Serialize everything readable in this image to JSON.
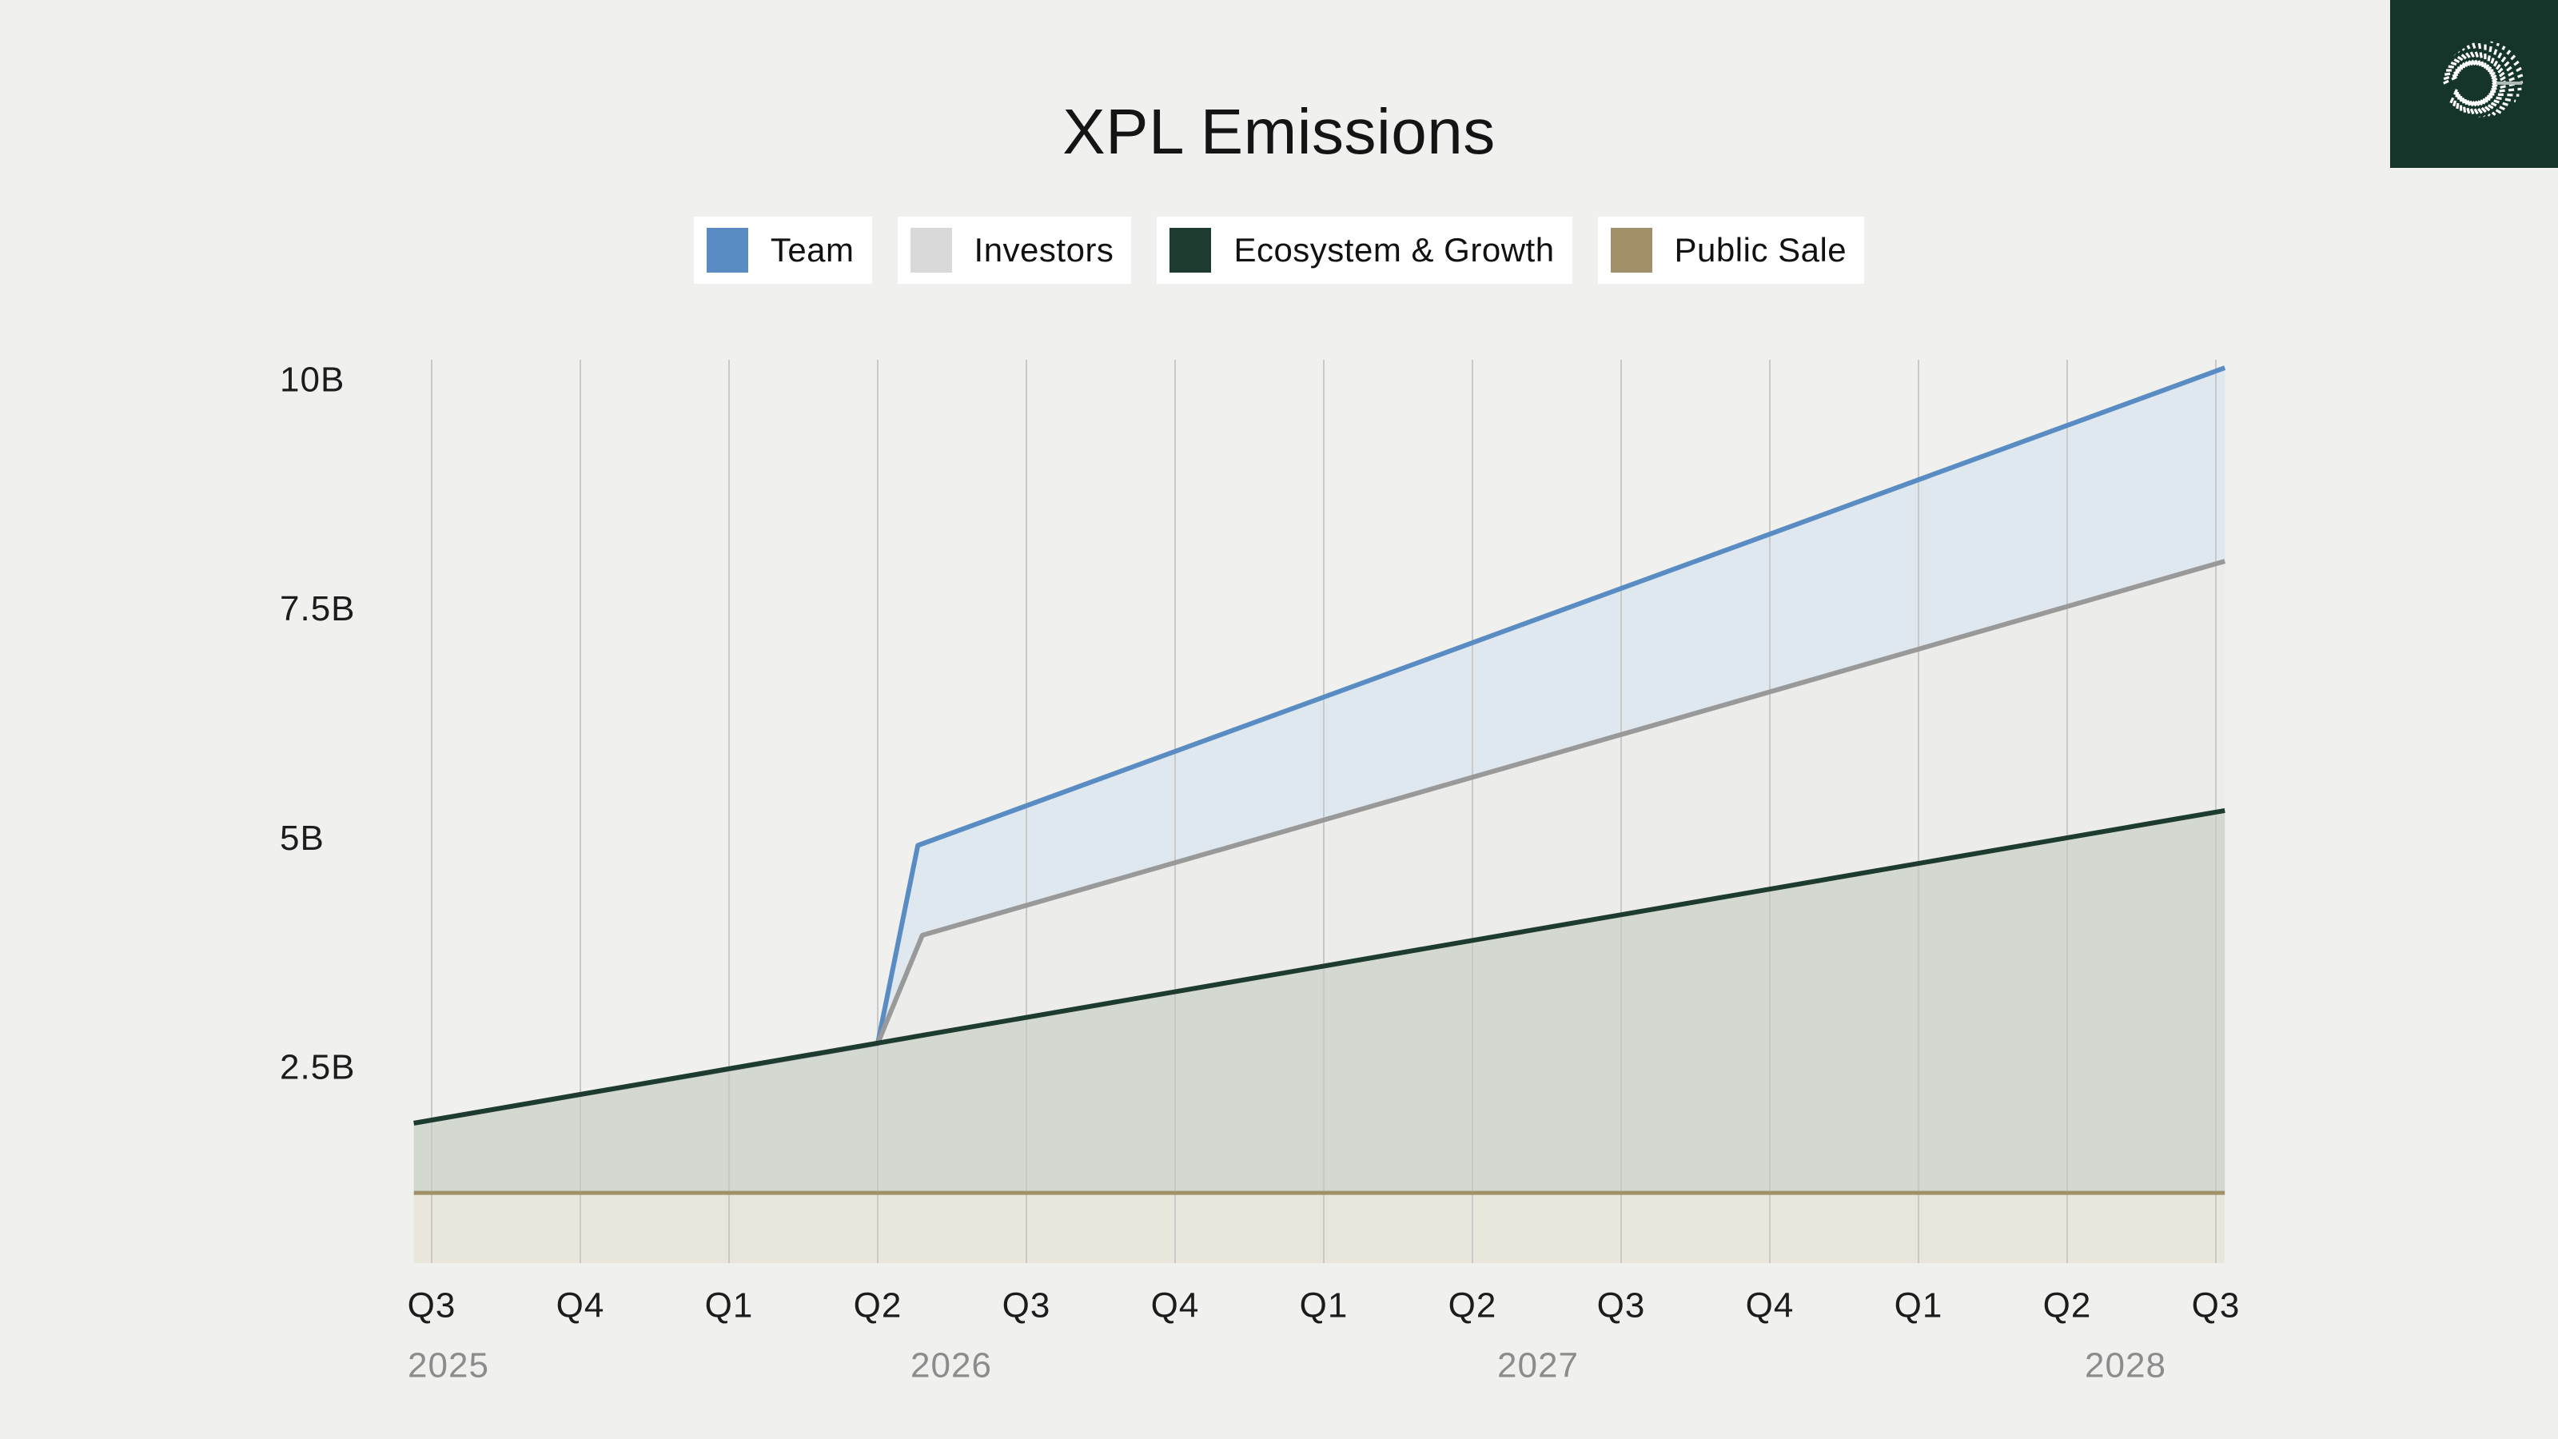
{
  "page": {
    "background": "#f0f0ee"
  },
  "header": {
    "title": "XPL Emissions"
  },
  "logo": {
    "name": "plasma-sunburst",
    "bg_color": "#16352a",
    "ray_color": "#ffffff",
    "accent_ray_color": "#aebbb4"
  },
  "legend": {
    "items": [
      {
        "label": "Team",
        "color": "#5a8cc4"
      },
      {
        "label": "Investors",
        "color": "#d9d9d9"
      },
      {
        "label": "Ecosystem & Growth",
        "color": "#1d3b2e"
      },
      {
        "label": "Public Sale",
        "color": "#a29168"
      }
    ]
  },
  "chart_data": {
    "type": "area",
    "stacked": true,
    "title": "XPL Emissions",
    "unit": "billions of XPL tokens",
    "x_unit": "quarters, t=0 at the Q3 2025 tick",
    "x_range_quarters": [
      -0.12,
      12.06
    ],
    "x_tick_labels": [
      "Q3",
      "Q4",
      "Q1",
      "Q2",
      "Q3",
      "Q4",
      "Q1",
      "Q2",
      "Q3",
      "Q4",
      "Q1",
      "Q2",
      "Q3"
    ],
    "year_labels": [
      "2025",
      "2026",
      "2027",
      "2028"
    ],
    "y_tick_labels": [
      "10B",
      "7.5B",
      "5B",
      "2.5B"
    ],
    "y_ticks_B": [
      10,
      7.5,
      5,
      2.5
    ],
    "ylim_visible_B": [
      0.36,
      10.22
    ],
    "grid": "vertical-only",
    "legend_position": "top-center",
    "series": [
      {
        "name": "Public Sale",
        "line_color": "#a29168",
        "fill_color": "#e9e7dc",
        "cumulative_points_B": [
          [
            -0.12,
            1.13
          ],
          [
            12.06,
            1.13
          ]
        ]
      },
      {
        "name": "Ecosystem & Growth",
        "line_color": "#1d3b2e",
        "fill_color": "#d3d8d0",
        "cumulative_points_B": [
          [
            -0.12,
            1.89
          ],
          [
            12.06,
            5.3
          ]
        ]
      },
      {
        "name": "Investors",
        "line_color": "#999999",
        "fill_color": "#ececeb",
        "cumulative_points_B": [
          [
            -0.12,
            1.89
          ],
          [
            3.0,
            2.76
          ],
          [
            3.3,
            3.94
          ],
          [
            12.06,
            8.02
          ]
        ]
      },
      {
        "name": "Team",
        "line_color": "#5a8cc4",
        "fill_color": "#dfe7ef",
        "cumulative_points_B": [
          [
            -0.12,
            1.89
          ],
          [
            3.0,
            2.76
          ],
          [
            3.27,
            4.92
          ],
          [
            12.06,
            10.13
          ]
        ]
      }
    ],
    "annotations": {
      "cliff_at_quarter": 3.0,
      "cliff_description_values_B": {
        "before": 2.76,
        "investors_after": 3.94,
        "team_after": 4.92
      }
    },
    "colors": {
      "gridline": "#c9c9c7",
      "axis_text": "#1c1c1c",
      "year_text": "#8c8c8c",
      "background": "#f0f0ee"
    }
  }
}
